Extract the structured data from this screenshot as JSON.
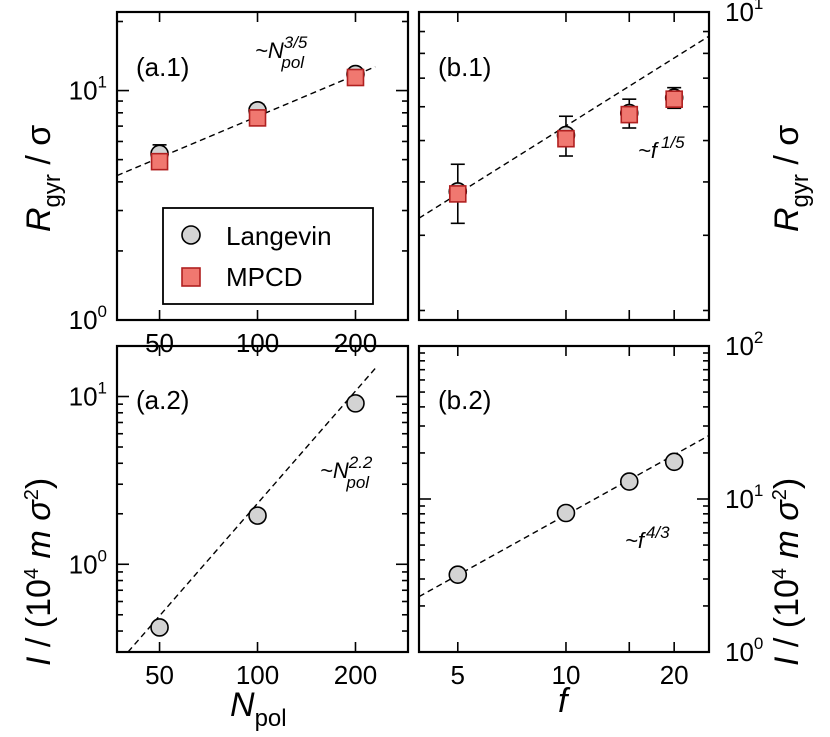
{
  "chart_data": [
    {
      "id": "a1",
      "type": "scatter",
      "scale": "log-log",
      "panel_label": "(a.1)",
      "x": [
        50,
        100,
        200
      ],
      "xlim": [
        37,
        290
      ],
      "ylim": [
        1,
        22
      ],
      "xticks": [
        50,
        100,
        200
      ],
      "yticks": [
        {
          "base": "10",
          "exp": "0",
          "value": 1
        },
        {
          "base": "10",
          "exp": "1",
          "value": 10
        }
      ],
      "series": [
        {
          "name": "Langevin",
          "marker": "circle",
          "values": [
            5.3,
            8.2,
            11.8
          ],
          "err": [
            0.5,
            0.5,
            0.5
          ]
        },
        {
          "name": "MPCD",
          "marker": "square",
          "values": [
            4.9,
            7.6,
            11.4
          ],
          "err": [
            0,
            0,
            0
          ]
        }
      ],
      "fit": {
        "x": [
          37,
          230
        ],
        "y": [
          4.26,
          12.7
        ]
      },
      "annotation": {
        "prefix": "~N",
        "sup": "3/5",
        "sub": "pol"
      },
      "ylabel": {
        "main": "R",
        "sub": "gyr",
        "rest": " / σ"
      }
    },
    {
      "id": "b1",
      "type": "scatter",
      "scale": "log-log",
      "panel_label": "(b.1)",
      "x": [
        5,
        10,
        15,
        20
      ],
      "xlim": [
        3.9,
        25
      ],
      "ylim": [
        1.9,
        10
      ],
      "yticks_right": [
        {
          "base": "10",
          "exp": "1",
          "value": 10
        }
      ],
      "series": [
        {
          "name": "Langevin",
          "marker": "circle",
          "values": [
            3.8,
            5.15,
            5.8,
            6.3
          ],
          "err": [
            0.6,
            0.55,
            0.45,
            0.35
          ]
        },
        {
          "name": "MPCD",
          "marker": "square",
          "values": [
            3.75,
            5.05,
            5.75,
            6.25
          ],
          "err": [
            0,
            0,
            0,
            0
          ]
        }
      ],
      "fit": {
        "x": [
          3.9,
          25
        ],
        "y": [
          3.29,
          8.78
        ]
      },
      "annotation": {
        "prefix": "~f",
        "sup": "1/5"
      },
      "ylabel": {
        "main": "R",
        "sub": "gyr",
        "rest": " / σ"
      }
    },
    {
      "id": "a2",
      "type": "scatter",
      "scale": "log-log",
      "panel_label": "(a.2)",
      "x": [
        50,
        100,
        200
      ],
      "xlim": [
        37,
        290
      ],
      "xticks": [
        50,
        100,
        200
      ],
      "ylim": [
        0.3,
        20
      ],
      "yticks": [
        {
          "base": "10",
          "exp": "0",
          "value": 1
        },
        {
          "base": "10",
          "exp": "1",
          "value": 10
        }
      ],
      "series": [
        {
          "name": "Langevin",
          "marker": "circle",
          "values": [
            0.42,
            1.95,
            9.1
          ]
        }
      ],
      "fit": {
        "x": [
          40,
          230
        ],
        "y": [
          0.3,
          14.7
        ]
      },
      "annotation": {
        "prefix": "~N",
        "sup": "2.2",
        "sub": "pol"
      },
      "xlabel": {
        "main": "N",
        "sub": "pol"
      },
      "ylabel": {
        "main": "I",
        "rest": " / (10",
        "sup": "4",
        "rest2": " m σ",
        "sup2": "2",
        "rest3": ")"
      }
    },
    {
      "id": "b2",
      "type": "scatter",
      "scale": "log-log",
      "panel_label": "(b.2)",
      "x": [
        5,
        10,
        15,
        20
      ],
      "xlim": [
        3.9,
        25
      ],
      "xticks": [
        5,
        10,
        20
      ],
      "ylim": [
        1,
        100
      ],
      "yticks_right": [
        {
          "base": "10",
          "exp": "0",
          "value": 1
        },
        {
          "base": "10",
          "exp": "1",
          "value": 10
        },
        {
          "base": "10",
          "exp": "2",
          "value": 100
        }
      ],
      "series": [
        {
          "name": "Langevin",
          "marker": "circle",
          "values": [
            3.2,
            8.1,
            13.0,
            17.5
          ]
        }
      ],
      "fit": {
        "x": [
          3.9,
          25
        ],
        "y": [
          2.3,
          26.0
        ]
      },
      "annotation": {
        "prefix": "~f",
        "sup": "4/3"
      },
      "xlabel": {
        "main": "f"
      },
      "ylabel": {
        "main": "I",
        "rest": " / (10",
        "sup": "4",
        "rest2": " m σ",
        "sup2": "2",
        "rest3": ")"
      }
    }
  ],
  "legend": [
    {
      "label": "Langevin",
      "marker": "circle"
    },
    {
      "label": "MPCD",
      "marker": "square"
    }
  ]
}
